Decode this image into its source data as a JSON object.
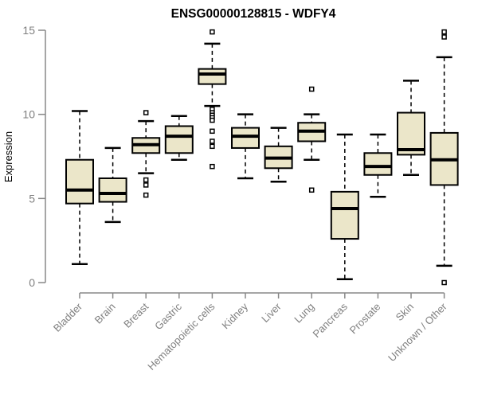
{
  "chart_data": {
    "type": "box",
    "title": "ENSG00000128815 - WDFY4",
    "ylabel": "Expression",
    "xlabel": "",
    "ylim": [
      0,
      15
    ],
    "yticks": [
      "0",
      "5",
      "10",
      "15"
    ],
    "grid": false,
    "legend": false,
    "categories": [
      "Bladder",
      "Brain",
      "Breast",
      "Gastric",
      "Hematopoietic cells",
      "Kidney",
      "Liver",
      "Lung",
      "Pancreas",
      "Prostate",
      "Skin",
      "Unknown / Other"
    ],
    "boxes": [
      {
        "whislo": 1.1,
        "q1": 4.7,
        "med": 5.5,
        "q3": 7.3,
        "whishi": 10.2,
        "outliers": []
      },
      {
        "whislo": 3.6,
        "q1": 4.8,
        "med": 5.3,
        "q3": 6.2,
        "whishi": 8.0,
        "outliers": []
      },
      {
        "whislo": 6.5,
        "q1": 7.7,
        "med": 8.2,
        "q3": 8.6,
        "whishi": 9.6,
        "outliers": [
          10.1,
          6.1,
          5.8,
          5.2
        ]
      },
      {
        "whislo": 7.3,
        "q1": 7.7,
        "med": 8.7,
        "q3": 9.3,
        "whishi": 9.9,
        "outliers": []
      },
      {
        "whislo": 10.5,
        "q1": 11.8,
        "med": 12.4,
        "q3": 12.7,
        "whishi": 14.2,
        "outliers": [
          14.9,
          10.3,
          10.1,
          9.95,
          9.8,
          9.65,
          9.0,
          8.4,
          8.1,
          6.9
        ]
      },
      {
        "whislo": 6.2,
        "q1": 8.0,
        "med": 8.7,
        "q3": 9.2,
        "whishi": 10.0,
        "outliers": []
      },
      {
        "whislo": 6.0,
        "q1": 6.8,
        "med": 7.4,
        "q3": 8.1,
        "whishi": 9.2,
        "outliers": []
      },
      {
        "whislo": 7.3,
        "q1": 8.4,
        "med": 9.0,
        "q3": 9.5,
        "whishi": 10.0,
        "outliers": [
          11.5,
          5.5
        ]
      },
      {
        "whislo": 0.2,
        "q1": 2.6,
        "med": 4.4,
        "q3": 5.4,
        "whishi": 8.8,
        "outliers": []
      },
      {
        "whislo": 5.1,
        "q1": 6.4,
        "med": 6.9,
        "q3": 7.7,
        "whishi": 8.8,
        "outliers": []
      },
      {
        "whislo": 6.4,
        "q1": 7.6,
        "med": 7.9,
        "q3": 10.1,
        "whishi": 12.0,
        "outliers": []
      },
      {
        "whislo": 1.0,
        "q1": 5.8,
        "med": 7.3,
        "q3": 8.9,
        "whishi": 13.4,
        "outliers": [
          14.9,
          14.6,
          0.0
        ]
      }
    ],
    "colors": {
      "box_fill": "#EBE6C9",
      "box_stroke": "#000000",
      "median": "#000000",
      "whisker": "#000000",
      "outlier_stroke": "#000000",
      "outlier_fill": "#ffffff",
      "axis": "#888888",
      "tick_label": "#808080",
      "title": "#000000"
    }
  }
}
